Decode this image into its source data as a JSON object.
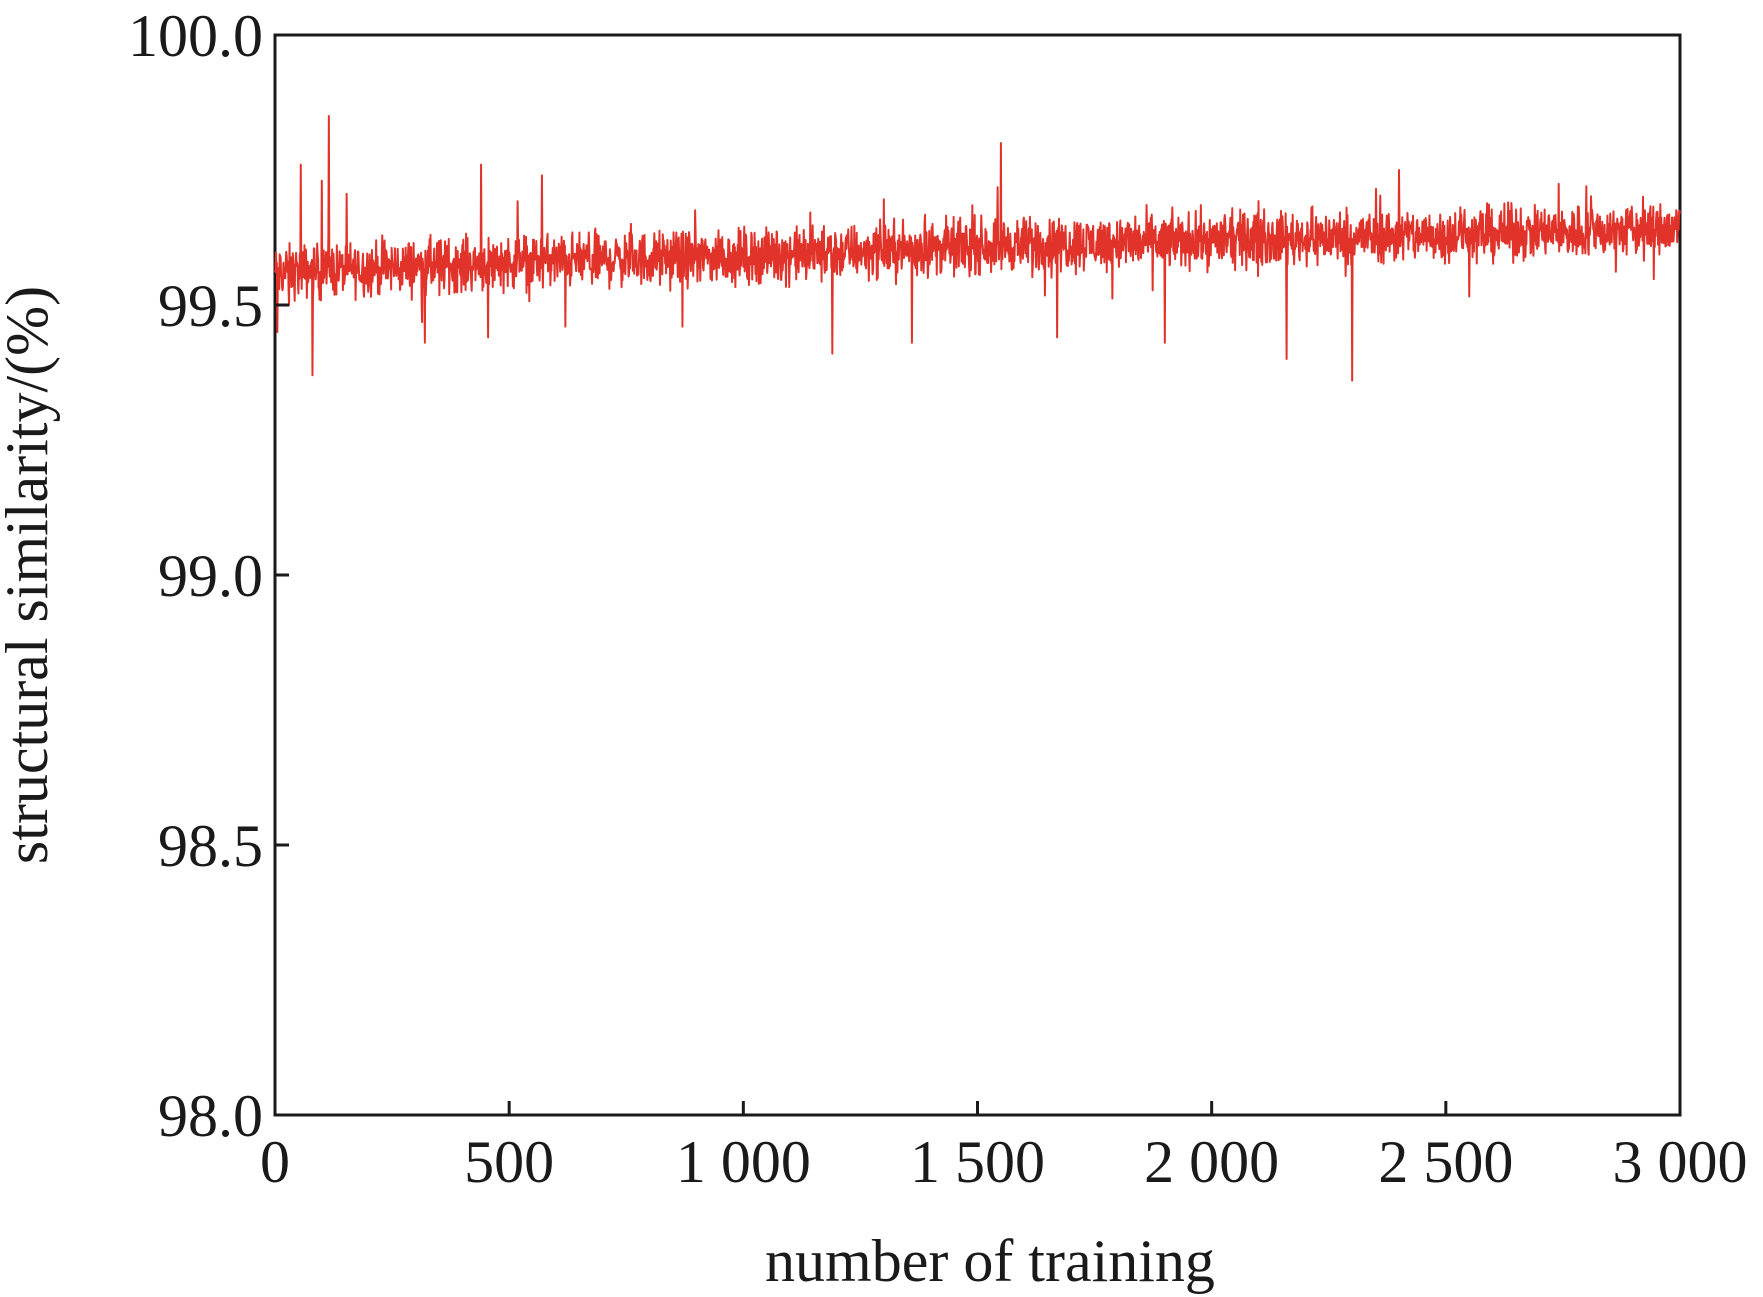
{
  "chart_data": {
    "type": "line",
    "title": "",
    "xlabel": "number of training",
    "ylabel": "structural similarity/(%)",
    "xlim": [
      0,
      3000
    ],
    "ylim": [
      98.0,
      100.0
    ],
    "xticks": [
      0,
      500,
      1000,
      1500,
      2000,
      2500,
      3000
    ],
    "xtick_labels": [
      "0",
      "500",
      "1 000",
      "1 500",
      "2 000",
      "2 500",
      "3 000"
    ],
    "yticks": [
      98.0,
      98.5,
      99.0,
      99.5,
      100.0
    ],
    "ytick_labels": [
      "98.0",
      "98.5",
      "99.0",
      "99.5",
      "100.0"
    ],
    "grid": false,
    "legend": "none",
    "line_color": "#e2332a",
    "series": [
      {
        "points_per_unit": 1,
        "trend": {
          "x": [
            0,
            500,
            1000,
            1500,
            2000,
            2500,
            3000
          ],
          "y": [
            99.56,
            99.58,
            99.59,
            99.61,
            99.62,
            99.63,
            99.64
          ]
        },
        "noise_amplitude": 0.045,
        "spikes": [
          {
            "x": 5,
            "y": 99.45
          },
          {
            "x": 30,
            "y": 99.5
          },
          {
            "x": 55,
            "y": 99.76
          },
          {
            "x": 80,
            "y": 99.37
          },
          {
            "x": 100,
            "y": 99.73
          },
          {
            "x": 115,
            "y": 99.85
          },
          {
            "x": 320,
            "y": 99.43
          },
          {
            "x": 440,
            "y": 99.76
          },
          {
            "x": 455,
            "y": 99.44
          },
          {
            "x": 570,
            "y": 99.74
          },
          {
            "x": 620,
            "y": 99.46
          },
          {
            "x": 870,
            "y": 99.46
          },
          {
            "x": 1190,
            "y": 99.41
          },
          {
            "x": 1360,
            "y": 99.43
          },
          {
            "x": 1550,
            "y": 99.8
          },
          {
            "x": 1670,
            "y": 99.44
          },
          {
            "x": 1900,
            "y": 99.43
          },
          {
            "x": 2160,
            "y": 99.4
          },
          {
            "x": 2300,
            "y": 99.36
          },
          {
            "x": 2400,
            "y": 99.75
          },
          {
            "x": 2800,
            "y": 99.72
          }
        ]
      }
    ]
  }
}
